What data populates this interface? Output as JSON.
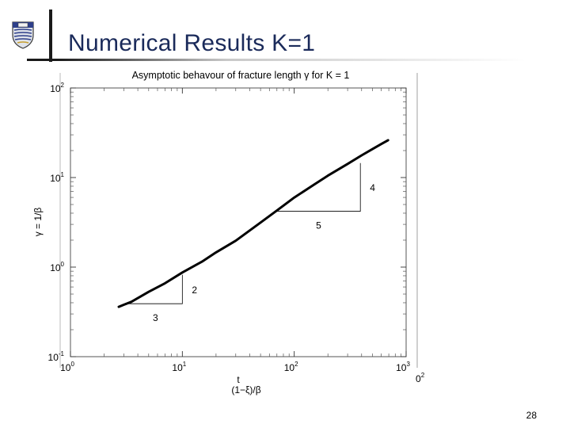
{
  "slide": {
    "title": "Numerical Results K=1",
    "page_number": "28"
  },
  "chart_data": {
    "type": "line",
    "title": "Asymptotic behavour of fracture length γ for K = 1",
    "ylabel": "γ = 1/β",
    "xlabel_line1": "t",
    "xlabel_line2": "(1−ξ)/β",
    "x_scale": "log",
    "y_scale": "log",
    "xlim": [
      1,
      1000
    ],
    "ylim": [
      0.1,
      100
    ],
    "x_ticks": [
      {
        "base": "10",
        "exp": "0",
        "value": 1
      },
      {
        "base": "10",
        "exp": "1",
        "value": 10
      },
      {
        "base": "10",
        "exp": "2",
        "value": 100
      },
      {
        "base": "10",
        "exp": "3",
        "value": 1000
      }
    ],
    "y_ticks": [
      {
        "base": "10",
        "exp": "-1",
        "value": 0.1
      },
      {
        "base": "10",
        "exp": "0",
        "value": 1
      },
      {
        "base": "10",
        "exp": "1",
        "value": 10
      },
      {
        "base": "10",
        "exp": "2",
        "value": 100
      }
    ],
    "extra_tick_label": {
      "base": "0",
      "exp": "2"
    },
    "grid": false,
    "series": [
      {
        "x": [
          2.7,
          3.0,
          3.5,
          5,
          7,
          10,
          15,
          20,
          30,
          50,
          70,
          100,
          150,
          200,
          300,
          400,
          500,
          600,
          690
        ],
        "y": [
          0.36,
          0.38,
          0.41,
          0.53,
          0.66,
          0.87,
          1.15,
          1.46,
          1.97,
          3.14,
          4.28,
          5.98,
          8.33,
          10.5,
          14.2,
          17.7,
          20.8,
          23.7,
          26.1
        ]
      }
    ],
    "slope_triangles": [
      {
        "x1": 3.3,
        "x2": 10,
        "y1": 0.39,
        "y2": 0.82,
        "run_label": "3",
        "rise_label": "2"
      },
      {
        "x1": 70,
        "x2": 390,
        "y1": 4.2,
        "y2": 14.5,
        "run_label": "5",
        "rise_label": "4"
      }
    ]
  }
}
